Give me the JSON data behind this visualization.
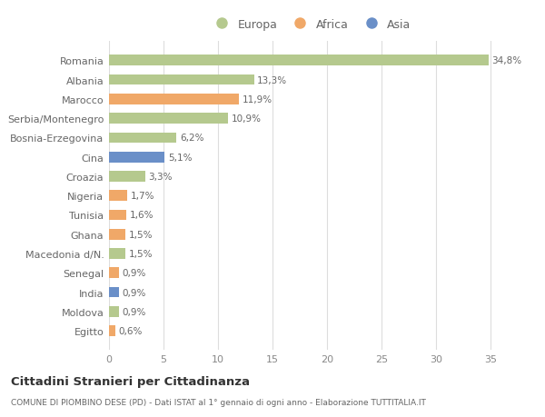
{
  "categories": [
    "Egitto",
    "Moldova",
    "India",
    "Senegal",
    "Macedonia d/N.",
    "Ghana",
    "Tunisia",
    "Nigeria",
    "Croazia",
    "Cina",
    "Bosnia-Erzegovina",
    "Serbia/Montenegro",
    "Marocco",
    "Albania",
    "Romania"
  ],
  "values": [
    0.6,
    0.9,
    0.9,
    0.9,
    1.5,
    1.5,
    1.6,
    1.7,
    3.3,
    5.1,
    6.2,
    10.9,
    11.9,
    13.3,
    34.8
  ],
  "labels": [
    "0,6%",
    "0,9%",
    "0,9%",
    "0,9%",
    "1,5%",
    "1,5%",
    "1,6%",
    "1,7%",
    "3,3%",
    "5,1%",
    "6,2%",
    "10,9%",
    "11,9%",
    "13,3%",
    "34,8%"
  ],
  "continents": [
    "Africa",
    "Europa",
    "Asia",
    "Africa",
    "Europa",
    "Africa",
    "Africa",
    "Africa",
    "Europa",
    "Asia",
    "Europa",
    "Europa",
    "Africa",
    "Europa",
    "Europa"
  ],
  "colors": {
    "Europa": "#b5c98e",
    "Africa": "#f0a868",
    "Asia": "#6a8fc8"
  },
  "legend": [
    "Europa",
    "Africa",
    "Asia"
  ],
  "legend_colors": [
    "#b5c98e",
    "#f0a868",
    "#6a8fc8"
  ],
  "title": "Cittadini Stranieri per Cittadinanza",
  "subtitle": "COMUNE DI PIOMBINO DESE (PD) - Dati ISTAT al 1° gennaio di ogni anno - Elaborazione TUTTITALIA.IT",
  "xlim": [
    0,
    37
  ],
  "xticks": [
    0,
    5,
    10,
    15,
    20,
    25,
    30,
    35
  ],
  "bg_color": "#ffffff",
  "plot_bg_color": "#ffffff"
}
